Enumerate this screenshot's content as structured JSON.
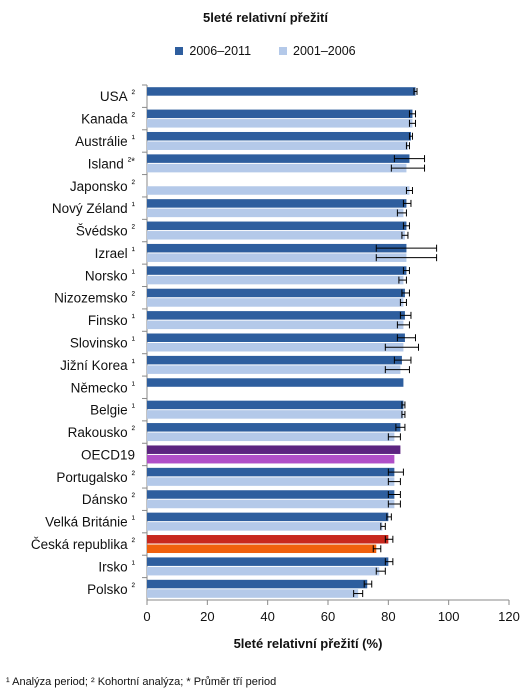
{
  "chart_data": {
    "type": "bar",
    "orientation": "horizontal",
    "title": "5leté relativní přežití",
    "xlabel": "5leté relativní přežití (%)",
    "ylabel": "",
    "xlim": [
      0,
      120
    ],
    "xticks": [
      "0",
      "20",
      "40",
      "60",
      "80",
      "100",
      "120"
    ],
    "grid": false,
    "legend_position": "top",
    "series": [
      {
        "name": "2006–2011",
        "color": "#2E5E9E"
      },
      {
        "name": "2001–2006",
        "color": "#B4C9E9"
      }
    ],
    "categories": [
      {
        "label": "USA",
        "sup": "²",
        "v1": 89,
        "e1": [
          88.5,
          89.5
        ],
        "v2": null,
        "e2": null
      },
      {
        "label": "Kanada",
        "sup": "²",
        "v1": 88,
        "e1": [
          87,
          89
        ],
        "v2": 88,
        "e2": [
          87,
          89
        ]
      },
      {
        "label": "Austrálie",
        "sup": "¹",
        "v1": 87.5,
        "e1": [
          87,
          88
        ],
        "v2": 86.5,
        "e2": [
          86,
          87
        ]
      },
      {
        "label": "Island",
        "sup": "²*",
        "v1": 87,
        "e1": [
          82,
          92
        ],
        "v2": 86,
        "e2": [
          81,
          92
        ]
      },
      {
        "label": "Japonsko",
        "sup": "²",
        "v1": null,
        "e1": null,
        "v2": 87,
        "e2": [
          86,
          88
        ]
      },
      {
        "label": "Nový Zéland",
        "sup": "¹",
        "v1": 86,
        "e1": [
          85,
          87.5
        ],
        "v2": 85,
        "e2": [
          83,
          86
        ]
      },
      {
        "label": "Švédsko",
        "sup": "²",
        "v1": 86,
        "e1": [
          85,
          87
        ],
        "v2": 85.5,
        "e2": [
          84.5,
          86.5
        ]
      },
      {
        "label": "Izrael",
        "sup": "¹",
        "v1": 86,
        "e1": [
          76,
          96
        ],
        "v2": 86,
        "e2": [
          76,
          96
        ]
      },
      {
        "label": "Norsko",
        "sup": "¹",
        "v1": 86,
        "e1": [
          85,
          87
        ],
        "v2": 85,
        "e2": [
          83.5,
          86
        ]
      },
      {
        "label": "Nizozemsko",
        "sup": "²",
        "v1": 85.5,
        "e1": [
          84.5,
          87
        ],
        "v2": 85,
        "e2": [
          84,
          86
        ]
      },
      {
        "label": "Finsko",
        "sup": "¹",
        "v1": 85.5,
        "e1": [
          84,
          87.5
        ],
        "v2": 85,
        "e2": [
          83,
          87
        ]
      },
      {
        "label": "Slovinsko",
        "sup": "¹",
        "v1": 85.5,
        "e1": [
          83,
          89
        ],
        "v2": 85,
        "e2": [
          79,
          90
        ]
      },
      {
        "label": "Jižní Korea",
        "sup": "¹",
        "v1": 84.5,
        "e1": [
          82,
          87.5
        ],
        "v2": 84,
        "e2": [
          79,
          87
        ]
      },
      {
        "label": "Německo",
        "sup": "¹",
        "v1": 85,
        "e1": null,
        "v2": null,
        "e2": null
      },
      {
        "label": "Belgie",
        "sup": "¹",
        "v1": 85,
        "e1": [
          84.5,
          85.5
        ],
        "v2": 85,
        "e2": [
          84.5,
          85.5
        ]
      },
      {
        "label": "Rakousko",
        "sup": "²",
        "v1": 84,
        "e1": [
          82.5,
          85.5
        ],
        "v2": 82,
        "e2": [
          80,
          84
        ]
      },
      {
        "label": "OECD19",
        "sup": "",
        "v1": 84,
        "e1": null,
        "v2": 82,
        "e2": null,
        "highlight": "purple"
      },
      {
        "label": "Portugalsko",
        "sup": "²",
        "v1": 82,
        "e1": [
          80,
          85
        ],
        "v2": 82,
        "e2": [
          80,
          84
        ]
      },
      {
        "label": "Dánsko",
        "sup": "²",
        "v1": 82,
        "e1": [
          80,
          84
        ],
        "v2": 82,
        "e2": [
          80,
          84
        ]
      },
      {
        "label": "Velká Británie",
        "sup": "¹",
        "v1": 80,
        "e1": [
          79.5,
          81
        ],
        "v2": 78,
        "e2": [
          77.5,
          79
        ]
      },
      {
        "label": "Česká republika",
        "sup": "²",
        "v1": 80,
        "e1": [
          79,
          81.5
        ],
        "v2": 76,
        "e2": [
          75,
          77.5
        ],
        "highlight": "red"
      },
      {
        "label": "Irsko",
        "sup": "¹",
        "v1": 80,
        "e1": [
          79,
          81.5
        ],
        "v2": 77,
        "e2": [
          76,
          79
        ]
      },
      {
        "label": "Polsko",
        "sup": "²",
        "v1": 73,
        "e1": [
          72,
          74.5
        ],
        "v2": 70,
        "e2": [
          68.5,
          71.5
        ]
      }
    ],
    "highlight_colors": {
      "purple": [
        "#5C2480",
        "#B04FC8"
      ],
      "red": [
        "#C8281E",
        "#F0600D"
      ]
    }
  },
  "footnote": "¹ Analýza period; ² Kohortní analýza; * Průměr tří period"
}
